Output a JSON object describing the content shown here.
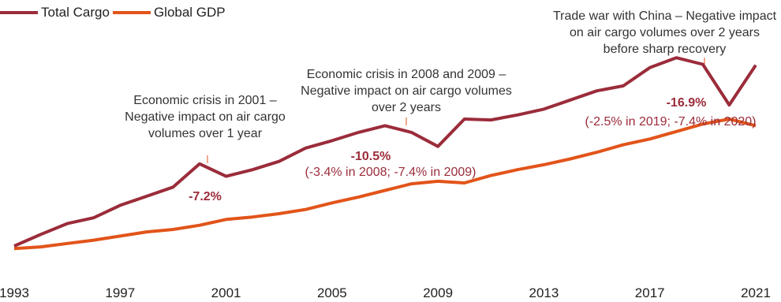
{
  "colors": {
    "cargo": "#9B2C3A",
    "gdp": "#E2541A",
    "annotation_text": "#333333",
    "label_accent": "#9B2C3A"
  },
  "chart_data": {
    "type": "line",
    "title": "",
    "xlabel": "",
    "ylabel": "",
    "x": [
      1993,
      1994,
      1995,
      1996,
      1997,
      1998,
      1999,
      2000,
      2001,
      2002,
      2003,
      2004,
      2005,
      2006,
      2007,
      2008,
      2009,
      2010,
      2011,
      2012,
      2013,
      2014,
      2015,
      2016,
      2017,
      2018,
      2019,
      2020,
      2021
    ],
    "x_ticks": [
      "1993",
      "1997",
      "2001",
      "2005",
      "2009",
      "2013",
      "2017",
      "2021"
    ],
    "xlim": [
      1993,
      2021
    ],
    "ylim": [
      0,
      230
    ],
    "grid": false,
    "legend_position": "top-left",
    "series": [
      {
        "name": "Total Cargo",
        "values": [
          0,
          14,
          27,
          34,
          49,
          60,
          71,
          99,
          84,
          92,
          102,
          118,
          127,
          137,
          145,
          137,
          120,
          153,
          152,
          158,
          165,
          176,
          187,
          193,
          215,
          227,
          219,
          170,
          218
        ]
      },
      {
        "name": "Global GDP",
        "values": [
          -3,
          -1,
          3,
          7,
          12,
          17,
          20,
          25,
          32,
          35,
          39,
          44,
          52,
          59,
          67,
          75,
          78,
          76,
          85,
          92,
          98,
          105,
          113,
          122,
          129,
          138,
          147,
          153,
          145
        ]
      }
    ],
    "annotations": [
      {
        "text": "Economic crisis in 2001 – Negative impact on air cargo volumes over 1 year",
        "year": 2000
      },
      {
        "text": "Economic crisis in 2008 and 2009 – Negative impact on air cargo volumes over 2 years",
        "year": 2008
      },
      {
        "text": "Trade war with China – Negative impact on air cargo volumes over 2 years before sharp recovery",
        "year": 2019
      }
    ],
    "change_labels": [
      {
        "value": "-7.2%",
        "detail": ""
      },
      {
        "value": "-10.5%",
        "detail": "(-3.4% in 2008; -7.4% in 2009)"
      },
      {
        "value": "-16.9%",
        "detail": "(-2.5% in 2019; -7.4% in 2020)"
      }
    ]
  }
}
